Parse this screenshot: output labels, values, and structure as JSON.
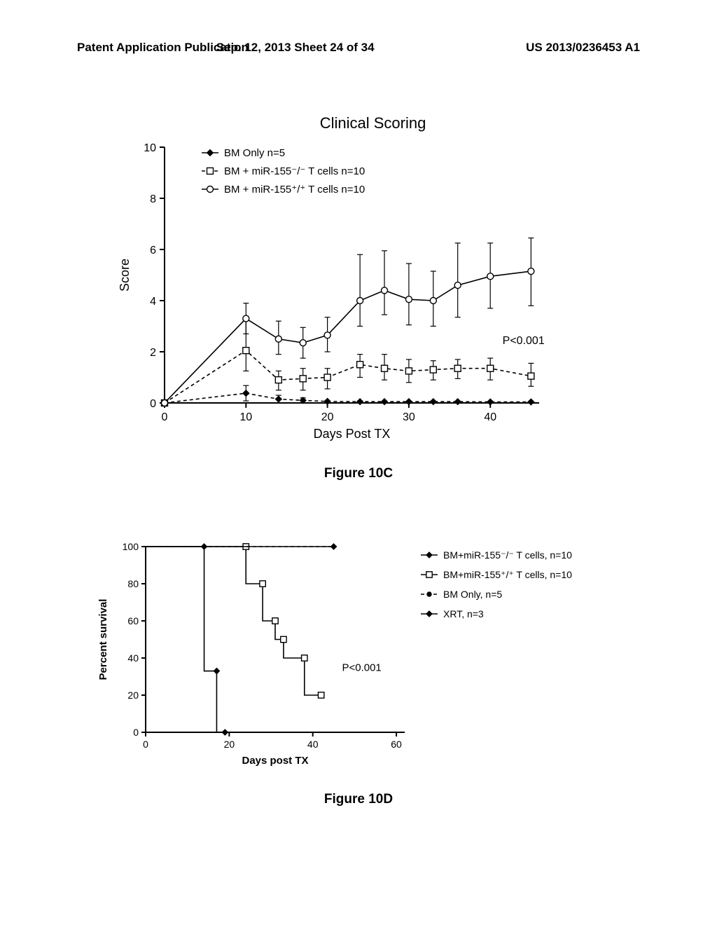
{
  "header": {
    "left": "Patent Application Publication",
    "mid": "Sep. 12, 2013  Sheet 24 of 34",
    "right": "US 2013/0236453 A1"
  },
  "figC": {
    "caption": "Figure 10C",
    "type": "line",
    "title": "Clinical Scoring",
    "xlabel": "Days Post TX",
    "ylabel": "Score",
    "xlim": [
      0,
      46
    ],
    "ylim": [
      0,
      10
    ],
    "xtick_step": 10,
    "ytick_step": 2,
    "p_text": "P<0.001",
    "legend": [
      {
        "label": "BM Only n=5",
        "marker": "solid-diamond",
        "dash": false
      },
      {
        "label": "BM + miR-155⁻/⁻ T cells  n=10",
        "marker": "open-square",
        "dash": true
      },
      {
        "label": "BM + miR-155⁺/⁺ T cells n=10",
        "marker": "open-circle",
        "dash": false
      }
    ],
    "series": [
      {
        "name": "bm-only",
        "marker": "solid-diamond",
        "dash": true,
        "points": [
          {
            "x": 0,
            "y": 0
          },
          {
            "x": 10,
            "y": 0.38,
            "el": 0.3,
            "eh": 0.3
          },
          {
            "x": 14,
            "y": 0.15,
            "el": 0.15,
            "eh": 0.15
          },
          {
            "x": 17,
            "y": 0.1,
            "el": 0.1,
            "eh": 0.1
          },
          {
            "x": 20,
            "y": 0.06
          },
          {
            "x": 24,
            "y": 0.05
          },
          {
            "x": 27,
            "y": 0.05
          },
          {
            "x": 30,
            "y": 0.05
          },
          {
            "x": 33,
            "y": 0.05
          },
          {
            "x": 36,
            "y": 0.05
          },
          {
            "x": 40,
            "y": 0.04
          },
          {
            "x": 45,
            "y": 0.04
          }
        ]
      },
      {
        "name": "mir155-ko",
        "marker": "open-square",
        "dash": true,
        "points": [
          {
            "x": 0,
            "y": 0
          },
          {
            "x": 10,
            "y": 2.05,
            "el": 0.8,
            "eh": 1.2
          },
          {
            "x": 14,
            "y": 0.9,
            "el": 0.4,
            "eh": 0.35
          },
          {
            "x": 17,
            "y": 0.95,
            "el": 0.45,
            "eh": 0.4
          },
          {
            "x": 20,
            "y": 1.0,
            "el": 0.45,
            "eh": 0.35
          },
          {
            "x": 24,
            "y": 1.5,
            "el": 0.5,
            "eh": 0.4
          },
          {
            "x": 27,
            "y": 1.35,
            "el": 0.45,
            "eh": 0.55
          },
          {
            "x": 30,
            "y": 1.25,
            "el": 0.45,
            "eh": 0.45
          },
          {
            "x": 33,
            "y": 1.3,
            "el": 0.4,
            "eh": 0.35
          },
          {
            "x": 36,
            "y": 1.35,
            "el": 0.4,
            "eh": 0.35
          },
          {
            "x": 40,
            "y": 1.35,
            "el": 0.45,
            "eh": 0.4
          },
          {
            "x": 45,
            "y": 1.05,
            "el": 0.4,
            "eh": 0.5
          }
        ]
      },
      {
        "name": "mir155-wt",
        "marker": "open-circle",
        "dash": false,
        "points": [
          {
            "x": 0,
            "y": 0
          },
          {
            "x": 10,
            "y": 3.3,
            "el": 0.6,
            "eh": 0.6
          },
          {
            "x": 14,
            "y": 2.5,
            "el": 0.6,
            "eh": 0.7
          },
          {
            "x": 17,
            "y": 2.35,
            "el": 0.6,
            "eh": 0.6
          },
          {
            "x": 20,
            "y": 2.65,
            "el": 0.65,
            "eh": 0.7
          },
          {
            "x": 24,
            "y": 4.0,
            "el": 1.0,
            "eh": 1.8
          },
          {
            "x": 27,
            "y": 4.4,
            "el": 0.95,
            "eh": 1.55
          },
          {
            "x": 30,
            "y": 4.05,
            "el": 1.0,
            "eh": 1.4
          },
          {
            "x": 33,
            "y": 4.0,
            "el": 1.0,
            "eh": 1.15
          },
          {
            "x": 36,
            "y": 4.6,
            "el": 1.25,
            "eh": 1.65
          },
          {
            "x": 40,
            "y": 4.95,
            "el": 1.25,
            "eh": 1.3
          },
          {
            "x": 45,
            "y": 5.15,
            "el": 1.35,
            "eh": 1.3
          }
        ]
      }
    ],
    "title_fontsize": 22,
    "label_fontsize": 18,
    "tick_fontsize": 16,
    "line_color": "#000000",
    "background_color": "#ffffff"
  },
  "figD": {
    "caption": "Figure 10D",
    "type": "survival-step",
    "xlabel": "Days post TX",
    "ylabel": "Percent survival",
    "xlim": [
      0,
      62
    ],
    "ylim": [
      0,
      100
    ],
    "xtick_step": 20,
    "ytick_step": 20,
    "p_text": "P<0.001",
    "legend": [
      {
        "label": "BM+miR-155⁻/⁻  T cells, n=10",
        "marker": "solid-diamond",
        "dash": false
      },
      {
        "label": "BM+miR-155⁺/⁺ T cells, n=10",
        "marker": "open-square",
        "dash": false
      },
      {
        "label": "BM Only, n=5",
        "marker": "solid-circle",
        "dash": true
      },
      {
        "label": "XRT, n=3",
        "marker": "solid-diamond",
        "dash": false
      }
    ],
    "series": [
      {
        "name": "xrt",
        "marker": "solid-diamond",
        "dash": false,
        "step": true,
        "points": [
          {
            "x": 0,
            "y": 100
          },
          {
            "x": 14,
            "y": 100,
            "m": true
          },
          {
            "x": 14,
            "y": 33
          },
          {
            "x": 17,
            "y": 33,
            "m": true
          },
          {
            "x": 17,
            "y": 0
          },
          {
            "x": 19,
            "y": 0,
            "m": true
          }
        ]
      },
      {
        "name": "mir155-wt-surv",
        "marker": "open-square",
        "dash": false,
        "step": true,
        "points": [
          {
            "x": 0,
            "y": 100
          },
          {
            "x": 24,
            "y": 100,
            "m": true
          },
          {
            "x": 24,
            "y": 80
          },
          {
            "x": 28,
            "y": 80,
            "m": true
          },
          {
            "x": 28,
            "y": 60
          },
          {
            "x": 31,
            "y": 60,
            "m": true
          },
          {
            "x": 31,
            "y": 50
          },
          {
            "x": 33,
            "y": 50,
            "m": true
          },
          {
            "x": 33,
            "y": 40
          },
          {
            "x": 38,
            "y": 40,
            "m": true
          },
          {
            "x": 38,
            "y": 20
          },
          {
            "x": 42,
            "y": 20,
            "m": true
          },
          {
            "x": 42,
            "y": 20
          }
        ]
      },
      {
        "name": "mir155-ko-surv",
        "marker": "solid-diamond",
        "dash": false,
        "step": true,
        "points": [
          {
            "x": 0,
            "y": 100
          },
          {
            "x": 45,
            "y": 100,
            "m": true
          }
        ]
      },
      {
        "name": "bm-only-surv",
        "marker": "solid-circle",
        "dash": true,
        "step": true,
        "points": [
          {
            "x": 0,
            "y": 100
          },
          {
            "x": 45,
            "y": 100
          }
        ]
      }
    ],
    "label_fontsize": 15,
    "tick_fontsize": 14,
    "line_color": "#000000",
    "background_color": "#ffffff"
  }
}
